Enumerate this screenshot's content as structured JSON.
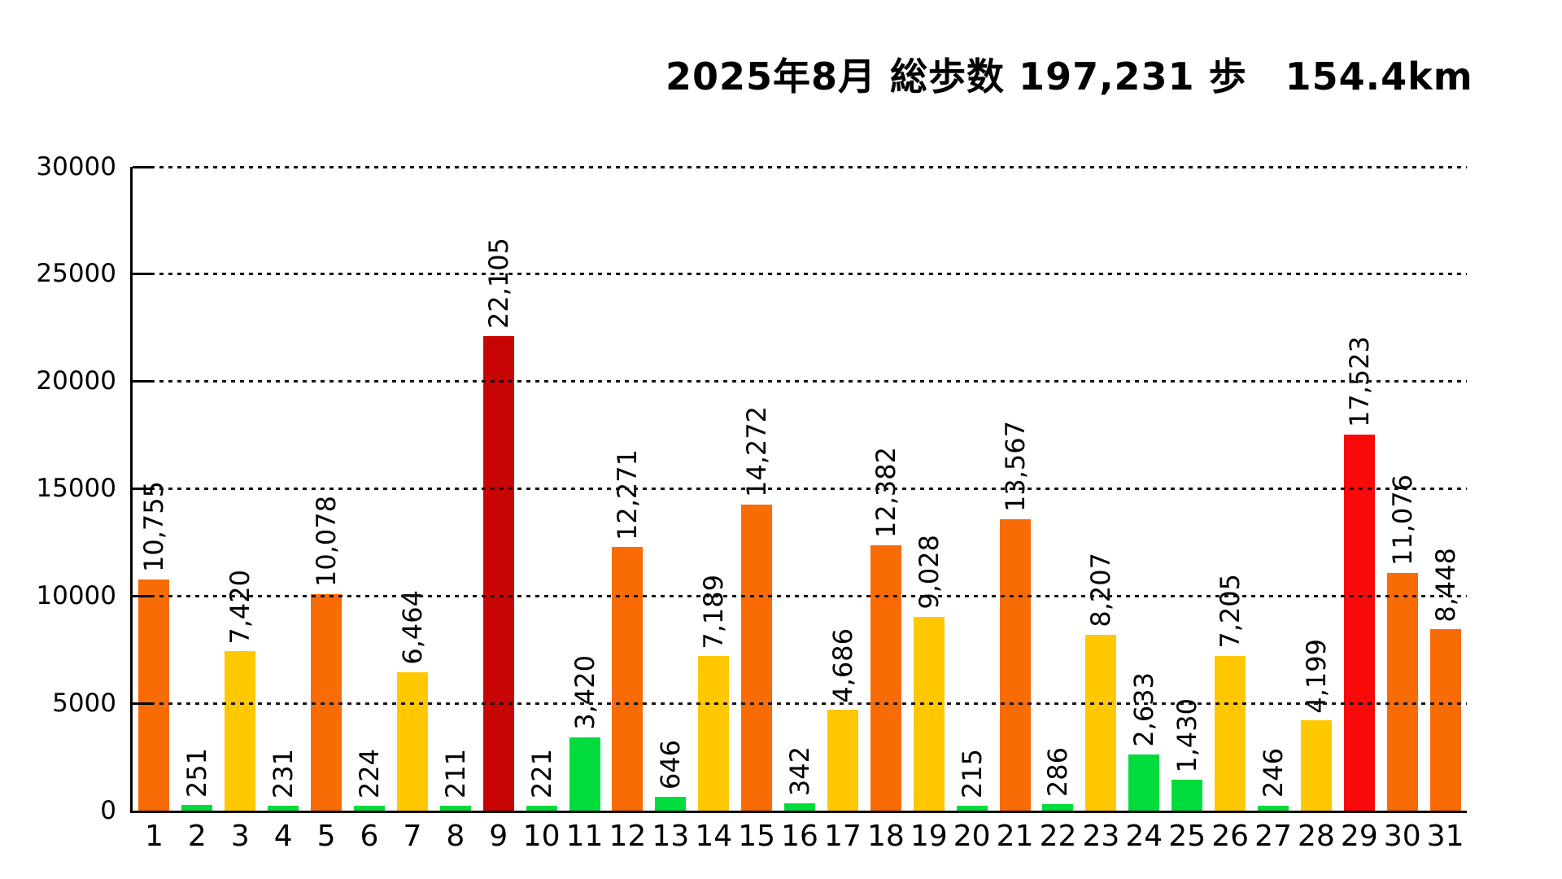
{
  "title": "2025年8月 総歩数 197,231 歩　154.4km",
  "summary": {
    "year": 2025,
    "month": 8,
    "total_steps": "197,231",
    "total_distance_km": "154.4"
  },
  "colors": {
    "background": "#ffffff",
    "axis": "#000000",
    "text": "#000000",
    "green": "#00dc3c",
    "yellow": "#ffc800",
    "orange": "#f96b05",
    "red": "#f90a0a",
    "darkred": "#c80505"
  },
  "chart_data": {
    "type": "bar",
    "title": "2025年8月 総歩数 197,231 歩　154.4km",
    "xlabel": "",
    "ylabel": "",
    "ylim": [
      0,
      30000
    ],
    "yticks": [
      0,
      5000,
      10000,
      15000,
      20000,
      25000,
      30000
    ],
    "ytick_labels": [
      "0",
      "5000",
      "10000",
      "15000",
      "20000",
      "25000",
      "30000"
    ],
    "grid": "horizontal-dotted",
    "legend": "none",
    "categories": [
      1,
      2,
      3,
      4,
      5,
      6,
      7,
      8,
      9,
      10,
      11,
      12,
      13,
      14,
      15,
      16,
      17,
      18,
      19,
      20,
      21,
      22,
      23,
      24,
      25,
      26,
      27,
      28,
      29,
      30,
      31
    ],
    "values": [
      10755,
      251,
      7420,
      231,
      10078,
      224,
      6464,
      211,
      22105,
      221,
      3420,
      12271,
      646,
      7189,
      14272,
      342,
      4686,
      12382,
      9028,
      215,
      13567,
      286,
      8207,
      2633,
      1430,
      7205,
      246,
      4199,
      17523,
      11076,
      8448
    ],
    "value_labels": [
      "10,755",
      "251",
      "7,420",
      "231",
      "10,078",
      "224",
      "6,464",
      "211",
      "22,105",
      "221",
      "3,420",
      "12,271",
      "646",
      "7,189",
      "14,272",
      "342",
      "4,686",
      "12,382",
      "9,028",
      "215",
      "13,567",
      "286",
      "8,207",
      "2,633",
      "1,430",
      "7,205",
      "246",
      "4,199",
      "17,523",
      "11,076",
      "8,448"
    ],
    "bar_colors": [
      "orange",
      "green",
      "yellow",
      "green",
      "orange",
      "green",
      "yellow",
      "green",
      "darkred",
      "green",
      "green",
      "orange",
      "green",
      "yellow",
      "orange",
      "green",
      "yellow",
      "orange",
      "yellow",
      "green",
      "orange",
      "green",
      "yellow",
      "green",
      "green",
      "yellow",
      "green",
      "yellow",
      "red",
      "orange",
      "orange"
    ]
  }
}
